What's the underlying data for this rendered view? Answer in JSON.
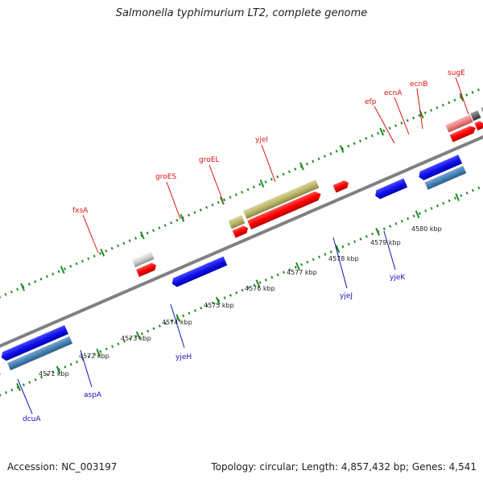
{
  "title": "Salmonella typhimurium LT2, complete genome",
  "footer": {
    "accession": "Accession: NC_003197",
    "summary": "Topology: circular; Length: 4,857,432 bp; Genes: 4,541"
  },
  "colors": {
    "forward_label": "#dd1111",
    "reverse_label": "#1111bb",
    "backbone": "#808080",
    "tick": "#228b22",
    "kbp_label": "#222222"
  },
  "kbp_labels": [
    "4571 kbp",
    "4572 kbp",
    "4573 kbp",
    "4574 kbp",
    "4575 kbp",
    "4576 kbp",
    "4577 kbp",
    "4578 kbp",
    "4579 kbp",
    "4580 kbp"
  ],
  "gene_labels": {
    "forward": [
      "fxsA",
      "groES",
      "groEL",
      "yjeI",
      "efp",
      "ecnA",
      "ecnB",
      "sugE"
    ],
    "reverse": [
      "dcuA",
      "aspA",
      "yjeH",
      "yjeJ",
      "yjeK"
    ]
  }
}
